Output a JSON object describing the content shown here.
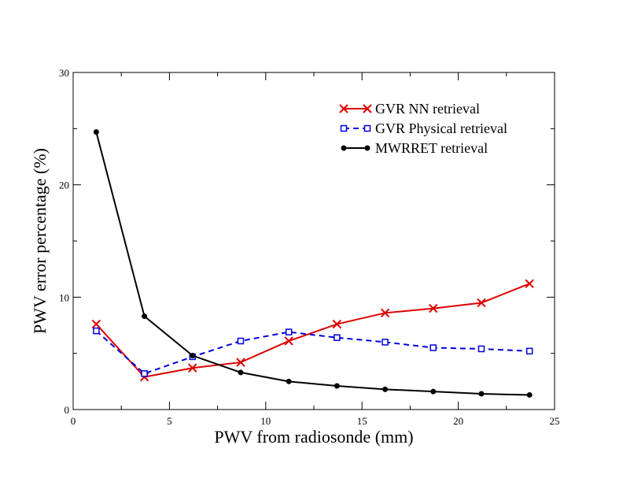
{
  "chart_data": {
    "type": "line",
    "xlabel": "PWV from radiosonde (mm)",
    "ylabel": "PWV error percentage (%)",
    "xlim": [
      0,
      25
    ],
    "ylim": [
      0,
      30
    ],
    "xticks": [
      0,
      5,
      10,
      15,
      20,
      25
    ],
    "yticks": [
      0,
      10,
      20,
      30
    ],
    "grid": false,
    "legend_position": "top-right",
    "series": [
      {
        "name": "GVR NN retrieval",
        "color": "#dd0000",
        "line": "solid",
        "marker": "x",
        "x": [
          1.2,
          3.7,
          6.2,
          8.7,
          11.2,
          13.7,
          16.2,
          18.7,
          21.2,
          23.7
        ],
        "y": [
          7.6,
          2.9,
          3.7,
          4.2,
          6.1,
          7.6,
          8.6,
          9.0,
          9.5,
          11.2
        ]
      },
      {
        "name": "GVR Physical retrieval",
        "color": "#0000dd",
        "line": "dashed",
        "marker": "square",
        "x": [
          1.2,
          3.7,
          6.2,
          8.7,
          11.2,
          13.7,
          16.2,
          18.7,
          21.2,
          23.7
        ],
        "y": [
          7.0,
          3.2,
          4.7,
          6.1,
          6.9,
          6.4,
          6.0,
          5.5,
          5.4,
          5.2
        ]
      },
      {
        "name": "MWRRET retrieval",
        "color": "#000000",
        "line": "solid",
        "marker": "circle",
        "x": [
          1.2,
          3.7,
          6.2,
          8.7,
          11.2,
          13.7,
          16.2,
          18.7,
          21.2,
          23.7
        ],
        "y": [
          24.7,
          8.3,
          4.8,
          3.3,
          2.5,
          2.1,
          1.8,
          1.6,
          1.4,
          1.3
        ]
      }
    ]
  }
}
